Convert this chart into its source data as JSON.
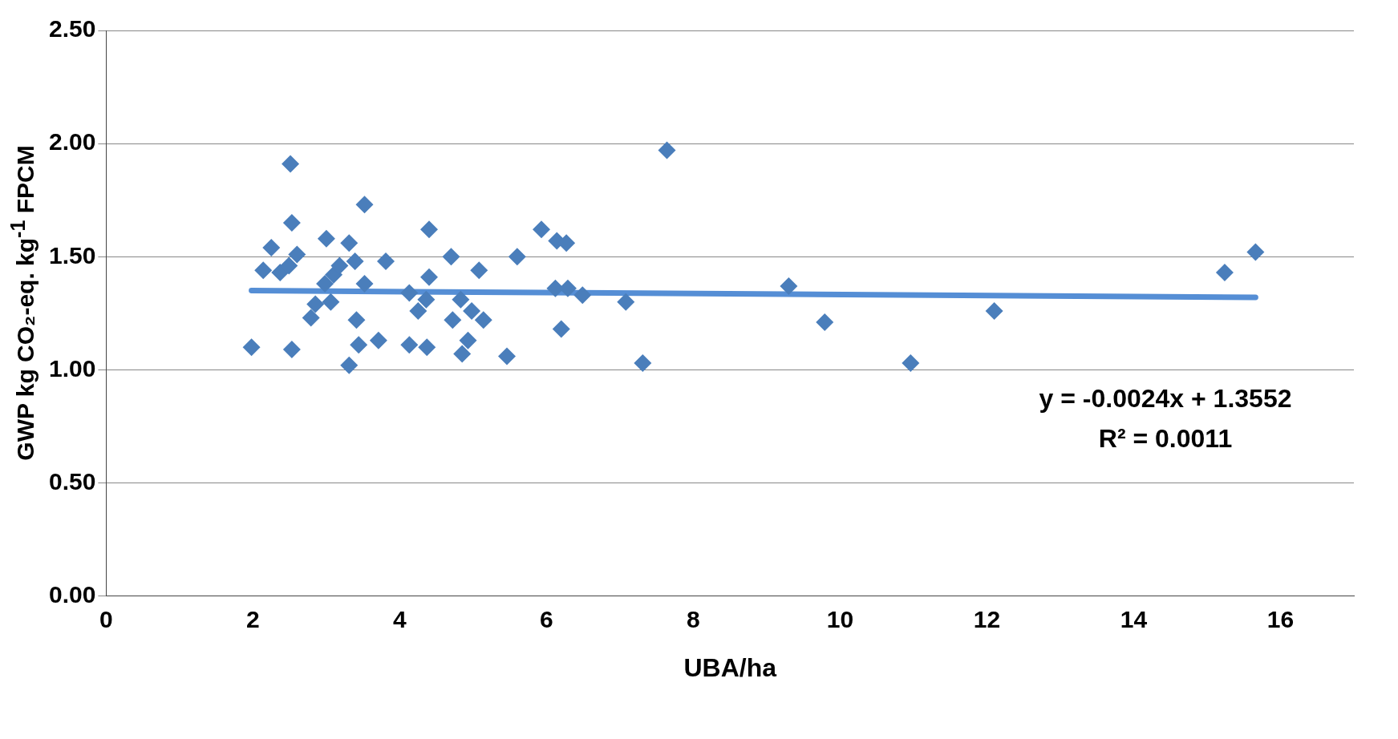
{
  "chart_data": {
    "type": "scatter",
    "xlabel": "UBA/ha",
    "ylabel": "GWP kg CO₂-eq. kg$^{-1}$ FPCM",
    "xlim": [
      0,
      17
    ],
    "xticks": [
      0,
      2,
      4,
      6,
      8,
      10,
      12,
      14,
      16
    ],
    "ylim": [
      0,
      2.5
    ],
    "yticks": [
      {
        "value": 0,
        "label": "0.00"
      },
      {
        "value": 0.5,
        "label": "0.50"
      },
      {
        "value": 1,
        "label": "1.00"
      },
      {
        "value": 1.5,
        "label": "1.50"
      },
      {
        "value": 2,
        "label": "2.00"
      },
      {
        "value": 2.5,
        "label": "2.50"
      }
    ],
    "grid": "y",
    "legend": false,
    "marker": "diamond",
    "annotations": [
      "y = -0.0024x + 1.3552",
      "R² = 0.0011"
    ],
    "series": [
      {
        "type": "scatter",
        "color": "#4a7ebb",
        "x": [
          1.98,
          2.51,
          2.53,
          2.53,
          2.25,
          2.14,
          2.37,
          2.49,
          2.6,
          2.79,
          2.85,
          3.0,
          2.98,
          3.1,
          3.06,
          3.18,
          3.31,
          3.39,
          3.31,
          3.41,
          3.52,
          3.52,
          3.44,
          3.71,
          3.81,
          4.13,
          4.13,
          4.25,
          4.4,
          4.4,
          4.37,
          4.36,
          4.7,
          4.72,
          4.83,
          4.85,
          4.93,
          4.98,
          5.08,
          5.14,
          5.46,
          5.6,
          5.93,
          6.14,
          6.27,
          6.12,
          6.29,
          6.2,
          6.49,
          7.08,
          7.31,
          7.64,
          9.3,
          9.79,
          10.96,
          12.1,
          15.24,
          15.66
        ],
        "values": [
          1.1,
          1.91,
          1.65,
          1.09,
          1.54,
          1.44,
          1.43,
          1.46,
          1.51,
          1.23,
          1.29,
          1.58,
          1.38,
          1.42,
          1.3,
          1.46,
          1.56,
          1.48,
          1.02,
          1.22,
          1.73,
          1.38,
          1.11,
          1.13,
          1.48,
          1.34,
          1.11,
          1.26,
          1.62,
          1.41,
          1.1,
          1.31,
          1.5,
          1.22,
          1.31,
          1.07,
          1.13,
          1.26,
          1.44,
          1.22,
          1.06,
          1.5,
          1.62,
          1.57,
          1.56,
          1.36,
          1.36,
          1.18,
          1.33,
          1.3,
          1.03,
          1.97,
          1.37,
          1.21,
          1.03,
          1.26,
          1.43,
          1.52
        ]
      },
      {
        "type": "line",
        "color": "#558ed5",
        "marker": "none",
        "x": [
          1.98,
          15.66
        ],
        "values": [
          1.35,
          1.32
        ]
      }
    ]
  }
}
